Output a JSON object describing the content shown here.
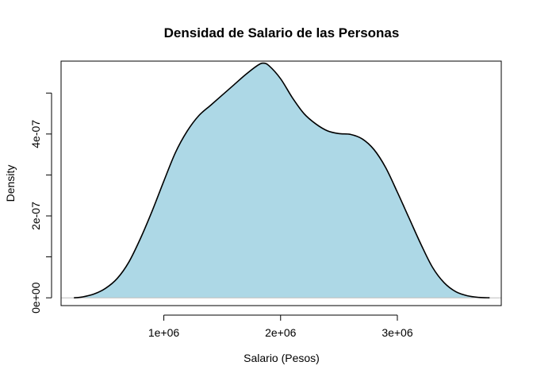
{
  "chart_data": {
    "type": "area",
    "title": "Densidad de Salario de las Personas",
    "xlabel": "Salario (Pesos)",
    "ylabel": "Density",
    "xlim": [
      120000,
      3890000
    ],
    "ylim": [
      -1.9e-08,
      5.78e-07
    ],
    "x_ticks": [
      1000000,
      2000000,
      3000000
    ],
    "x_tick_labels": [
      "1e+06",
      "2e+06",
      "3e+06"
    ],
    "y_ticks": [
      0,
      1e-07,
      2e-07,
      3e-07,
      4e-07,
      5e-07
    ],
    "y_tick_labels": [
      "0e+00",
      "",
      "2e-07",
      "",
      "4e-07",
      ""
    ],
    "baseline": 0,
    "grid": false,
    "legend": "none",
    "colors": {
      "fill": "#add8e6",
      "line": "#000000",
      "baseline": "#bebebe"
    },
    "series": [
      {
        "x": [
          230000,
          300000,
          400000,
          500000,
          600000,
          700000,
          800000,
          900000,
          1000000,
          1100000,
          1200000,
          1300000,
          1400000,
          1500000,
          1600000,
          1700000,
          1800000,
          1850000,
          1900000,
          2000000,
          2100000,
          2200000,
          2300000,
          2400000,
          2500000,
          2600000,
          2700000,
          2800000,
          2900000,
          3000000,
          3100000,
          3200000,
          3300000,
          3400000,
          3500000,
          3600000,
          3700000,
          3790000
        ],
        "y": [
          0,
          2e-09,
          9e-09,
          2.3e-08,
          4.7e-08,
          8.7e-08,
          1.45e-07,
          2.12e-07,
          2.85e-07,
          3.55e-07,
          4.07e-07,
          4.45e-07,
          4.7e-07,
          4.95e-07,
          5.2e-07,
          5.45e-07,
          5.67e-07,
          5.73e-07,
          5.67e-07,
          5.35e-07,
          4.89e-07,
          4.5e-07,
          4.25e-07,
          4.08e-07,
          4.01e-07,
          3.99e-07,
          3.88e-07,
          3.62e-07,
          3.18e-07,
          2.58e-07,
          1.95e-07,
          1.32e-07,
          7.5e-08,
          3.7e-08,
          1.5e-08,
          5e-09,
          1e-09,
          0
        ]
      }
    ]
  }
}
